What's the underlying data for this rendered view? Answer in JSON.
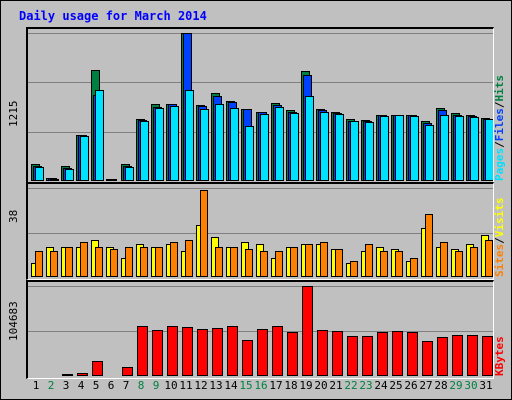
{
  "title": "Daily usage for March 2014",
  "colors": {
    "hits": "#008040",
    "files": "#0040ff",
    "pages": "#00e0ff",
    "visits": "#ffff00",
    "sites": "#ff8000",
    "kbytes": "#ff0000",
    "weekday_label": "#000000",
    "weekend_label": "#008040"
  },
  "panel_labels": {
    "hits_max": "1215",
    "visits_max": "38",
    "kbytes_max": "104683",
    "pages": "Pages",
    "files": "Files",
    "hits": "Hits",
    "visits": "Visits",
    "sites": "Sites",
    "kbytes": "KBytes",
    "sep": "/"
  },
  "chart_data": [
    {
      "type": "bar",
      "panel": "hits-files-pages",
      "ylim": [
        0,
        1215
      ],
      "categories": [
        "1",
        "2",
        "3",
        "4",
        "5",
        "6",
        "7",
        "8",
        "9",
        "10",
        "11",
        "12",
        "13",
        "14",
        "15",
        "16",
        "17",
        "18",
        "19",
        "20",
        "21",
        "22",
        "23",
        "24",
        "25",
        "26",
        "27",
        "28",
        "29",
        "30",
        "31"
      ],
      "weekend": [
        false,
        true,
        false,
        false,
        false,
        false,
        false,
        true,
        true,
        false,
        false,
        false,
        false,
        false,
        true,
        true,
        false,
        false,
        false,
        false,
        false,
        true,
        true,
        false,
        false,
        false,
        false,
        false,
        true,
        true,
        false
      ],
      "series": [
        {
          "name": "Hits",
          "values": [
            138,
            27,
            120,
            380,
            910,
            18,
            140,
            510,
            630,
            635,
            1215,
            625,
            725,
            660,
            590,
            570,
            640,
            585,
            900,
            590,
            570,
            505,
            500,
            545,
            545,
            545,
            495,
            600,
            555,
            545,
            515
          ]
        },
        {
          "name": "Files",
          "values": [
            125,
            22,
            110,
            375,
            710,
            15,
            125,
            500,
            610,
            630,
            1215,
            615,
            700,
            650,
            590,
            565,
            625,
            570,
            870,
            580,
            555,
            495,
            495,
            540,
            540,
            540,
            475,
            585,
            545,
            535,
            510
          ]
        },
        {
          "name": "Pages",
          "values": [
            115,
            15,
            95,
            370,
            745,
            10,
            115,
            495,
            600,
            615,
            745,
            595,
            630,
            600,
            455,
            550,
            605,
            555,
            700,
            570,
            550,
            490,
            485,
            535,
            540,
            530,
            460,
            540,
            535,
            525,
            505
          ]
        }
      ]
    },
    {
      "type": "bar",
      "panel": "visits-sites",
      "ylim": [
        0,
        38
      ],
      "categories": [
        "1",
        "2",
        "3",
        "4",
        "5",
        "6",
        "7",
        "8",
        "9",
        "10",
        "11",
        "12",
        "13",
        "14",
        "15",
        "16",
        "17",
        "18",
        "19",
        "20",
        "21",
        "22",
        "23",
        "24",
        "25",
        "26",
        "27",
        "28",
        "29",
        "30",
        "31"
      ],
      "series": [
        {
          "name": "Visits",
          "values": [
            6,
            13,
            13,
            13,
            16,
            13,
            8,
            14,
            13,
            14,
            11,
            22,
            17,
            13,
            15,
            14,
            8,
            13,
            14,
            14,
            12,
            6,
            11,
            13,
            12,
            7,
            21,
            13,
            12,
            14,
            18
          ]
        },
        {
          "name": "Sites",
          "values": [
            11,
            11,
            13,
            15,
            13,
            12,
            13,
            13,
            13,
            15,
            16,
            37,
            13,
            13,
            12,
            11,
            11,
            13,
            14,
            15,
            12,
            7,
            14,
            11,
            11,
            8,
            27,
            15,
            11,
            13,
            16
          ]
        }
      ]
    },
    {
      "type": "bar",
      "panel": "kbytes",
      "ylim": [
        0,
        104683
      ],
      "categories": [
        "1",
        "2",
        "3",
        "4",
        "5",
        "6",
        "7",
        "8",
        "9",
        "10",
        "11",
        "12",
        "13",
        "14",
        "15",
        "16",
        "17",
        "18",
        "19",
        "20",
        "21",
        "22",
        "23",
        "24",
        "25",
        "26",
        "27",
        "28",
        "29",
        "30",
        "31"
      ],
      "series": [
        {
          "name": "KBytes",
          "values": [
            1500,
            1500,
            2500,
            4000,
            17000,
            1500,
            11000,
            58000,
            54000,
            58000,
            57000,
            55000,
            56000,
            58000,
            42000,
            55000,
            58000,
            51000,
            104683,
            53000,
            52000,
            46000,
            46000,
            51000,
            52000,
            51000,
            41000,
            45000,
            48000,
            48000,
            47000
          ]
        }
      ]
    }
  ]
}
